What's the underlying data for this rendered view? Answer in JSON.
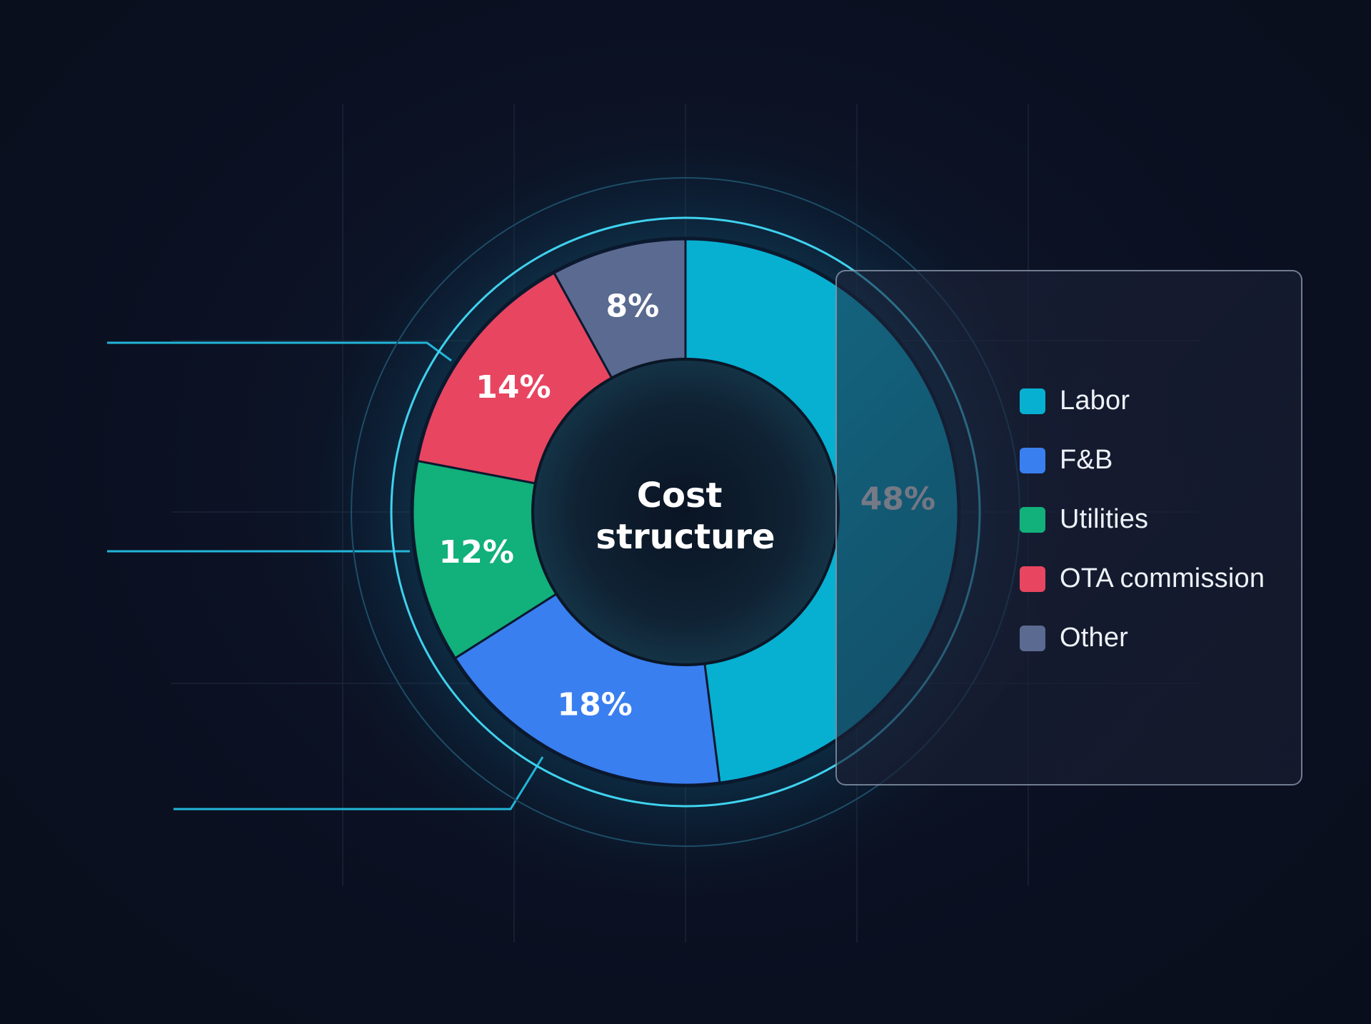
{
  "chart_data": {
    "type": "pie",
    "variant": "donut",
    "title": "Cost structure",
    "slices": [
      {
        "label": "Labor",
        "value": 48,
        "display": "48%",
        "color": "#07b0d1"
      },
      {
        "label": "F&B",
        "value": 18,
        "display": "18%",
        "color": "#3a7ff0"
      },
      {
        "label": "Utilities",
        "value": 12,
        "display": "12%",
        "color": "#12b07a"
      },
      {
        "label": "OTA commission",
        "value": 14,
        "display": "14%",
        "color": "#e84560"
      },
      {
        "label": "Other",
        "value": 8,
        "display": "8%",
        "color": "#5a6a90"
      }
    ],
    "legend": {
      "placement": "right",
      "items": [
        "Labor",
        "F&B",
        "Utilities",
        "OTA commission",
        "Other"
      ]
    }
  },
  "colors": {
    "background": "#0b1122",
    "glow": "#19c3e6",
    "panel_border": "#bccde1"
  }
}
